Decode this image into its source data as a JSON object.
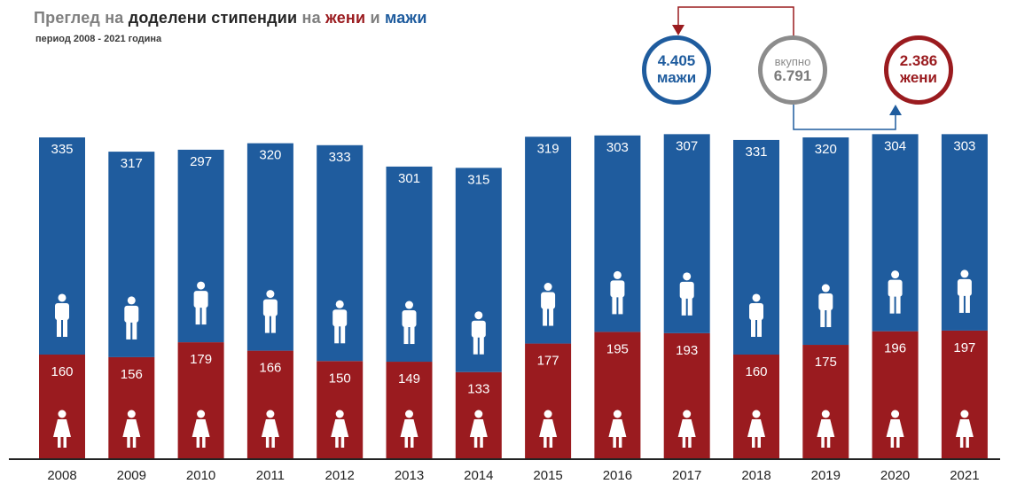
{
  "header": {
    "title_prefix": "Преглед на ",
    "title_bold": "доделени стипендии",
    "title_middle": " на ",
    "title_women": "жени",
    "title_and": " и ",
    "title_men": "мажи",
    "subtitle": "период 2008 - 2021 година"
  },
  "summary": {
    "men_value": "4.405",
    "men_label": "мажи",
    "total_label": "вкупно",
    "total_value": "6.791",
    "women_value": "2.386",
    "women_label": "жени"
  },
  "colors": {
    "men": "#1f5c9e",
    "women": "#9a1b1f",
    "total": "#8c8c8c"
  },
  "chart_data": {
    "type": "bar",
    "stacked": true,
    "categories": [
      "2008",
      "2009",
      "2010",
      "2011",
      "2012",
      "2013",
      "2014",
      "2015",
      "2016",
      "2017",
      "2018",
      "2019",
      "2020",
      "2021"
    ],
    "series": [
      {
        "name": "жени",
        "values": [
          160,
          156,
          179,
          166,
          150,
          149,
          133,
          177,
          195,
          193,
          160,
          175,
          196,
          197
        ]
      },
      {
        "name": "мажи",
        "values": [
          335,
          317,
          297,
          320,
          333,
          301,
          315,
          319,
          303,
          307,
          331,
          320,
          304,
          303
        ]
      }
    ],
    "title": "",
    "xlabel": "",
    "ylabel": "",
    "legend": "none"
  }
}
